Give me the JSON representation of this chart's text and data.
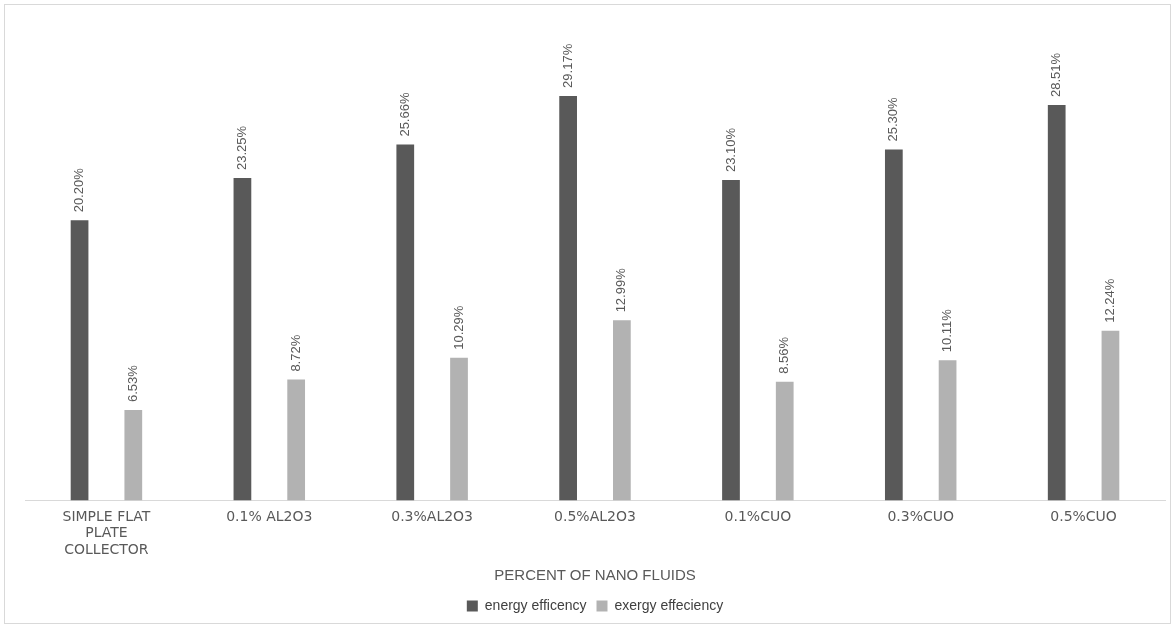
{
  "chart_data": {
    "type": "bar",
    "xlabel": "PERCENT OF NANO FLUIDS",
    "categories": [
      "SIMPLE FLAT PLATE COLLECTOR",
      "0.1% AL2O3",
      "0.3%AL2O3",
      "0.5%AL2O3",
      "0.1%CUO",
      "0.3%CUO",
      "0.5%CUO"
    ],
    "series": [
      {
        "name": "energy efficency",
        "color": "#595959",
        "values": [
          20.2,
          23.25,
          25.66,
          29.17,
          23.1,
          25.3,
          28.51
        ],
        "value_labels": [
          "20.20%",
          "23.25%",
          "25.66%",
          "29.17%",
          "23.10%",
          "25.30%",
          "28.51%"
        ]
      },
      {
        "name": "exergy effeciency",
        "color": "#b2b2b2",
        "values": [
          6.53,
          8.72,
          10.29,
          12.99,
          8.56,
          10.11,
          12.24
        ],
        "value_labels": [
          "6.53%",
          "8.72%",
          "10.29%",
          "12.99%",
          "8.56%",
          "10.11%",
          "12.24%"
        ]
      }
    ],
    "legend": "bottom",
    "grid": false
  }
}
